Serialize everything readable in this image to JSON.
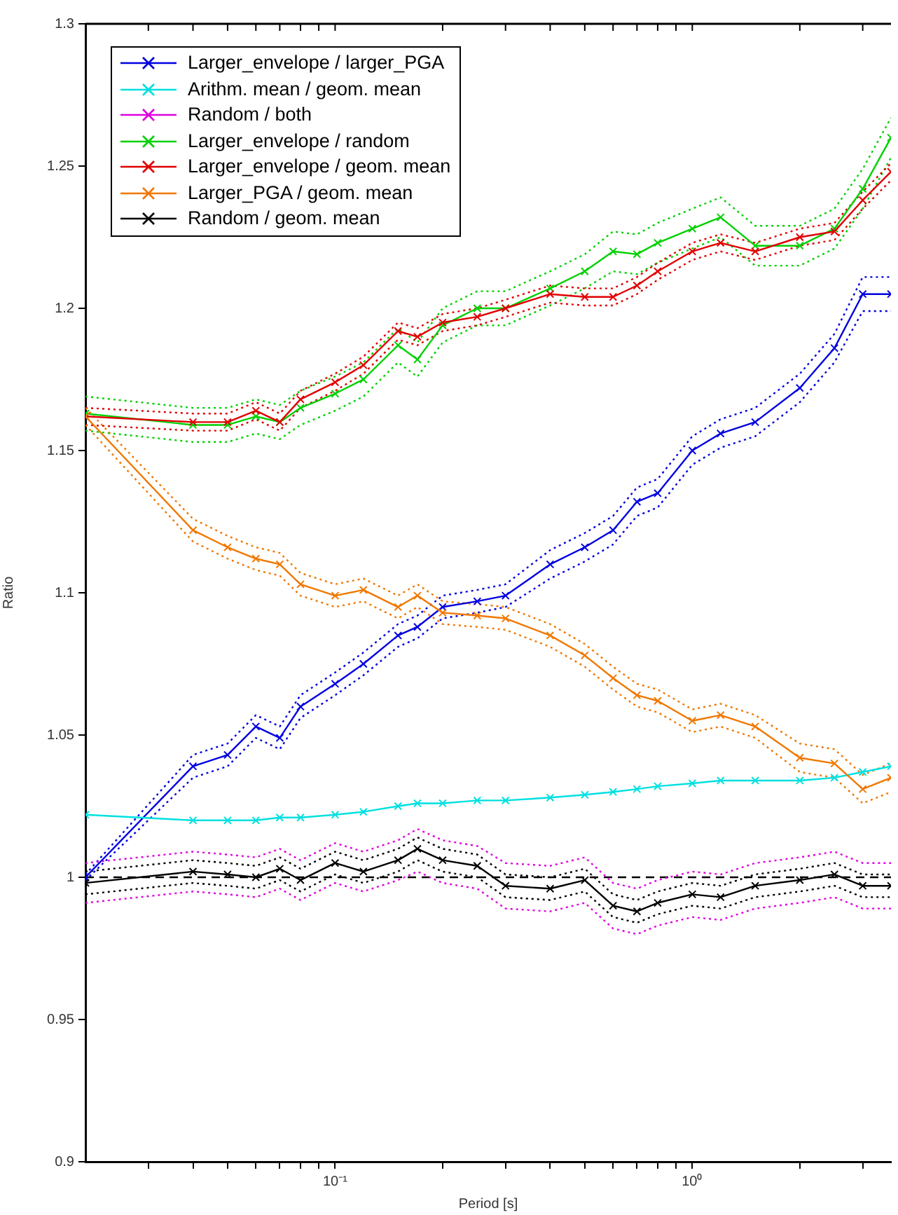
{
  "chart_data": {
    "type": "line",
    "xlabel": "Period [s]",
    "ylabel": "Ratio",
    "log": "x",
    "grid": false,
    "legend": "top left",
    "marker": "cross",
    "line_style": "solid",
    "x": [
      0.02,
      0.04,
      0.05,
      0.06,
      0.07,
      0.08,
      0.1,
      0.12,
      0.15,
      0.17,
      0.2,
      0.25,
      0.3,
      0.4,
      0.5,
      0.6,
      0.7,
      0.8,
      1,
      1.2,
      1.5,
      2,
      2.5,
      3,
      3.6
    ],
    "xlim": [
      0.02,
      3.6
    ],
    "ylim": [
      0.9,
      1.3
    ],
    "xticks": [
      {
        "value": 0.03,
        "label": null
      },
      {
        "value": 0.04,
        "label": null
      },
      {
        "value": 0.05,
        "label": null
      },
      {
        "value": 0.06,
        "label": null
      },
      {
        "value": 0.07,
        "label": null
      },
      {
        "value": 0.08,
        "label": null
      },
      {
        "value": 0.09,
        "label": null
      },
      {
        "value": 0.1,
        "label": "10⁻¹"
      },
      {
        "value": 0.2,
        "label": null
      },
      {
        "value": 0.3,
        "label": null
      },
      {
        "value": 0.4,
        "label": null
      },
      {
        "value": 0.5,
        "label": null
      },
      {
        "value": 0.6,
        "label": null
      },
      {
        "value": 0.7,
        "label": null
      },
      {
        "value": 0.8,
        "label": null
      },
      {
        "value": 0.9,
        "label": null
      },
      {
        "value": 1,
        "label": "10⁰"
      },
      {
        "value": 2,
        "label": null
      },
      {
        "value": 3,
        "label": null
      }
    ],
    "yticks": [
      0.9,
      0.95,
      1,
      1.05,
      1.1,
      1.15,
      1.2,
      1.25,
      1.3
    ],
    "ref_lines": [
      {
        "axis": "y",
        "value": 1,
        "color": "#000000",
        "line_style": "dashed"
      }
    ],
    "series": [
      {
        "name": "Larger_envelope / larger_PGA",
        "color": "#0000e0",
        "values": [
          1.0,
          1.039,
          1.043,
          1.053,
          1.049,
          1.06,
          1.068,
          1.075,
          1.085,
          1.088,
          1.095,
          1.097,
          1.099,
          1.11,
          1.116,
          1.122,
          1.132,
          1.135,
          1.15,
          1.156,
          1.16,
          1.172,
          1.186,
          1.205,
          1.205
        ]
      },
      {
        "name": "Arithm. mean / geom. mean",
        "color": "#00e0e0",
        "values": [
          1.022,
          1.02,
          1.02,
          1.02,
          1.021,
          1.021,
          1.022,
          1.023,
          1.025,
          1.026,
          1.026,
          1.027,
          1.027,
          1.028,
          1.029,
          1.03,
          1.031,
          1.032,
          1.033,
          1.034,
          1.034,
          1.034,
          1.035,
          1.037,
          1.039
        ]
      },
      {
        "name": "Random / both",
        "color": "#e000e0",
        "values": [
          null,
          null,
          null,
          null,
          null,
          null,
          null,
          null,
          null,
          null,
          null,
          null,
          null,
          null,
          null,
          null,
          null,
          null,
          null,
          null,
          null,
          null,
          null,
          null,
          null
        ]
      },
      {
        "name": "Larger_envelope / random",
        "color": "#00d000",
        "values": [
          1.163,
          1.159,
          1.159,
          1.162,
          1.16,
          1.165,
          1.17,
          1.175,
          1.187,
          1.182,
          1.194,
          1.2,
          1.2,
          1.207,
          1.213,
          1.22,
          1.219,
          1.223,
          1.228,
          1.232,
          1.222,
          1.222,
          1.228,
          1.242,
          1.26
        ]
      },
      {
        "name": "Larger_envelope / geom. mean",
        "color": "#e00000",
        "values": [
          1.162,
          1.16,
          1.16,
          1.164,
          1.16,
          1.168,
          1.174,
          1.18,
          1.192,
          1.19,
          1.195,
          1.197,
          1.2,
          1.205,
          1.204,
          1.204,
          1.208,
          1.213,
          1.22,
          1.223,
          1.22,
          1.225,
          1.227,
          1.238,
          1.248
        ]
      },
      {
        "name": "Larger_PGA / geom. mean",
        "color": "#f07800",
        "values": [
          1.162,
          1.122,
          1.116,
          1.112,
          1.11,
          1.103,
          1.099,
          1.101,
          1.095,
          1.099,
          1.093,
          1.092,
          1.091,
          1.085,
          1.078,
          1.07,
          1.064,
          1.062,
          1.055,
          1.057,
          1.053,
          1.042,
          1.04,
          1.031,
          1.035
        ]
      },
      {
        "name": "Random / geom. mean",
        "color": "#000000",
        "values": [
          0.998,
          1.002,
          1.001,
          1.0,
          1.003,
          0.999,
          1.005,
          1.002,
          1.006,
          1.01,
          1.006,
          1.004,
          0.997,
          0.996,
          0.999,
          0.99,
          0.988,
          0.991,
          0.994,
          0.993,
          0.997,
          0.999,
          1.001,
          0.997,
          0.997
        ]
      },
      {
        "color": "#0000e0",
        "line_style": "dotted",
        "marker": "none",
        "values": [
          0.999,
          1.035,
          1.039,
          1.049,
          1.045,
          1.056,
          1.064,
          1.071,
          1.081,
          1.084,
          1.091,
          1.093,
          1.095,
          1.105,
          1.111,
          1.117,
          1.127,
          1.13,
          1.145,
          1.151,
          1.155,
          1.167,
          1.181,
          1.199,
          1.199
        ]
      },
      {
        "color": "#0000e0",
        "line_style": "dotted",
        "marker": "none",
        "values": [
          1.001,
          1.043,
          1.047,
          1.057,
          1.053,
          1.064,
          1.072,
          1.079,
          1.089,
          1.092,
          1.099,
          1.101,
          1.103,
          1.115,
          1.121,
          1.127,
          1.137,
          1.14,
          1.155,
          1.161,
          1.165,
          1.177,
          1.191,
          1.211,
          1.211
        ]
      },
      {
        "color": "#e000e0",
        "line_style": "dotted",
        "marker": "none",
        "values": [
          0.991,
          0.995,
          0.994,
          0.993,
          0.996,
          0.992,
          0.998,
          0.995,
          0.999,
          1.002,
          0.998,
          0.996,
          0.989,
          0.988,
          0.991,
          0.982,
          0.98,
          0.983,
          0.986,
          0.985,
          0.989,
          0.991,
          0.993,
          0.989,
          0.989
        ]
      },
      {
        "color": "#e000e0",
        "line_style": "dotted",
        "marker": "none",
        "values": [
          1.005,
          1.009,
          1.008,
          1.007,
          1.01,
          1.006,
          1.012,
          1.009,
          1.013,
          1.017,
          1.013,
          1.011,
          1.005,
          1.004,
          1.007,
          0.998,
          0.996,
          0.999,
          1.002,
          1.001,
          1.005,
          1.007,
          1.009,
          1.005,
          1.005
        ]
      },
      {
        "color": "#00d000",
        "line_style": "dotted",
        "marker": "none",
        "values": [
          1.157,
          1.153,
          1.153,
          1.156,
          1.154,
          1.159,
          1.164,
          1.169,
          1.181,
          1.176,
          1.188,
          1.194,
          1.194,
          1.201,
          1.207,
          1.213,
          1.212,
          1.216,
          1.221,
          1.225,
          1.215,
          1.215,
          1.221,
          1.235,
          1.253
        ]
      },
      {
        "color": "#00d000",
        "line_style": "dotted",
        "marker": "none",
        "values": [
          1.169,
          1.165,
          1.165,
          1.168,
          1.166,
          1.171,
          1.176,
          1.181,
          1.193,
          1.188,
          1.2,
          1.206,
          1.206,
          1.213,
          1.219,
          1.227,
          1.226,
          1.23,
          1.235,
          1.239,
          1.229,
          1.229,
          1.235,
          1.249,
          1.267
        ]
      },
      {
        "color": "#e00000",
        "line_style": "dotted",
        "marker": "none",
        "values": [
          1.159,
          1.157,
          1.157,
          1.161,
          1.157,
          1.165,
          1.171,
          1.177,
          1.189,
          1.187,
          1.192,
          1.194,
          1.197,
          1.202,
          1.201,
          1.201,
          1.205,
          1.21,
          1.217,
          1.22,
          1.217,
          1.222,
          1.224,
          1.235,
          1.245
        ]
      },
      {
        "color": "#e00000",
        "line_style": "dotted",
        "marker": "none",
        "values": [
          1.165,
          1.163,
          1.163,
          1.167,
          1.163,
          1.171,
          1.177,
          1.183,
          1.195,
          1.193,
          1.198,
          1.2,
          1.203,
          1.208,
          1.207,
          1.207,
          1.211,
          1.216,
          1.223,
          1.226,
          1.223,
          1.228,
          1.23,
          1.241,
          1.251
        ]
      },
      {
        "color": "#f07800",
        "line_style": "dotted",
        "marker": "none",
        "values": [
          1.159,
          1.118,
          1.112,
          1.108,
          1.106,
          1.099,
          1.095,
          1.097,
          1.091,
          1.095,
          1.089,
          1.088,
          1.087,
          1.081,
          1.074,
          1.066,
          1.06,
          1.058,
          1.051,
          1.053,
          1.049,
          1.037,
          1.035,
          1.026,
          1.03
        ]
      },
      {
        "color": "#f07800",
        "line_style": "dotted",
        "marker": "none",
        "values": [
          1.165,
          1.126,
          1.12,
          1.116,
          1.114,
          1.107,
          1.103,
          1.105,
          1.099,
          1.103,
          1.097,
          1.096,
          1.095,
          1.089,
          1.082,
          1.074,
          1.068,
          1.066,
          1.059,
          1.061,
          1.057,
          1.047,
          1.045,
          1.036,
          1.04
        ]
      },
      {
        "color": "#000000",
        "line_style": "dotted",
        "marker": "none",
        "values": [
          0.994,
          0.998,
          0.997,
          0.996,
          0.999,
          0.995,
          1.001,
          0.998,
          1.002,
          1.006,
          1.002,
          1.0,
          0.993,
          0.992,
          0.995,
          0.986,
          0.984,
          0.987,
          0.99,
          0.989,
          0.993,
          0.995,
          0.997,
          0.993,
          0.993
        ]
      },
      {
        "color": "#000000",
        "line_style": "dotted",
        "marker": "none",
        "values": [
          1.002,
          1.006,
          1.005,
          1.004,
          1.007,
          1.003,
          1.009,
          1.006,
          1.01,
          1.014,
          1.01,
          1.008,
          1.001,
          1.0,
          1.003,
          0.994,
          0.992,
          0.995,
          0.998,
          0.997,
          1.001,
          1.003,
          1.005,
          1.001,
          1.001
        ]
      }
    ]
  }
}
